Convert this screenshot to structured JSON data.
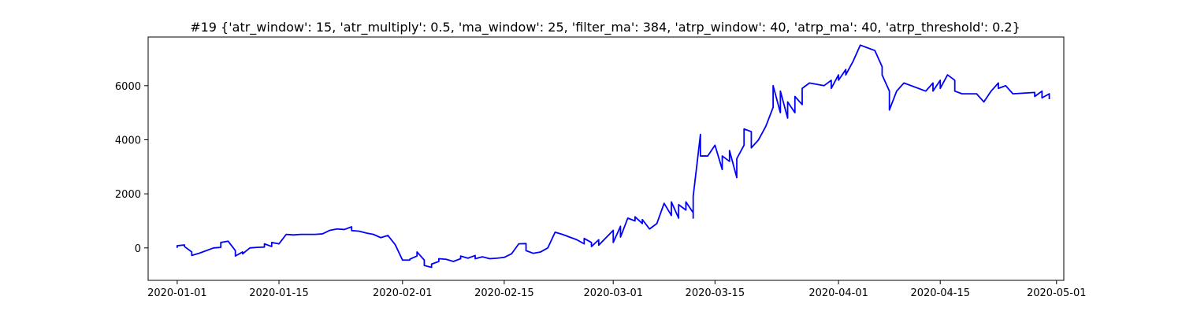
{
  "chart_data": {
    "type": "line",
    "title": "#19 {'atr_window': 15, 'atr_multiply': 0.5, 'ma_window': 25, 'filter_ma': 384, 'atrp_window': 40, 'atrp_ma': 40, 'atrp_threshold': 0.2}",
    "xlabel": "",
    "ylabel": "",
    "x_ticks": [
      {
        "date": "2020-01-01",
        "label": "2020-01-01"
      },
      {
        "date": "2020-01-15",
        "label": "2020-01-15"
      },
      {
        "date": "2020-02-01",
        "label": "2020-02-01"
      },
      {
        "date": "2020-02-15",
        "label": "2020-02-15"
      },
      {
        "date": "2020-03-01",
        "label": "2020-03-01"
      },
      {
        "date": "2020-03-15",
        "label": "2020-03-15"
      },
      {
        "date": "2020-04-01",
        "label": "2020-04-01"
      },
      {
        "date": "2020-04-15",
        "label": "2020-04-15"
      },
      {
        "date": "2020-05-01",
        "label": "2020-05-01"
      }
    ],
    "y_ticks": [
      0,
      2000,
      4000,
      6000
    ],
    "xlim": [
      "2019-12-28",
      "2020-05-02"
    ],
    "ylim": [
      -1200,
      7800
    ],
    "grid": false,
    "series": [
      {
        "color": "#0000ff",
        "points": [
          [
            "2020-01-01",
            0
          ],
          [
            "2020-01-01",
            80
          ],
          [
            "2020-01-02",
            110
          ],
          [
            "2020-01-02",
            50
          ],
          [
            "2020-01-03",
            -150
          ],
          [
            "2020-01-03",
            -280
          ],
          [
            "2020-01-04",
            -200
          ],
          [
            "2020-01-06",
            0
          ],
          [
            "2020-01-07",
            20
          ],
          [
            "2020-01-07",
            200
          ],
          [
            "2020-01-08",
            250
          ],
          [
            "2020-01-09",
            -100
          ],
          [
            "2020-01-09",
            -300
          ],
          [
            "2020-01-10",
            -150
          ],
          [
            "2020-01-10",
            -220
          ],
          [
            "2020-01-11",
            0
          ],
          [
            "2020-01-12",
            20
          ],
          [
            "2020-01-13",
            30
          ],
          [
            "2020-01-13",
            150
          ],
          [
            "2020-01-14",
            50
          ],
          [
            "2020-01-14",
            200
          ],
          [
            "2020-01-15",
            150
          ],
          [
            "2020-01-16",
            500
          ],
          [
            "2020-01-17",
            480
          ],
          [
            "2020-01-18",
            500
          ],
          [
            "2020-01-20",
            500
          ],
          [
            "2020-01-21",
            520
          ],
          [
            "2020-01-22",
            650
          ],
          [
            "2020-01-23",
            700
          ],
          [
            "2020-01-24",
            680
          ],
          [
            "2020-01-25",
            780
          ],
          [
            "2020-01-25",
            640
          ],
          [
            "2020-01-26",
            620
          ],
          [
            "2020-01-27",
            550
          ],
          [
            "2020-01-28",
            500
          ],
          [
            "2020-01-29",
            380
          ],
          [
            "2020-01-30",
            460
          ],
          [
            "2020-01-31",
            120
          ],
          [
            "2020-02-01",
            -450
          ],
          [
            "2020-02-02",
            -450
          ],
          [
            "2020-02-02",
            -420
          ],
          [
            "2020-02-03",
            -300
          ],
          [
            "2020-02-03",
            -150
          ],
          [
            "2020-02-04",
            -450
          ],
          [
            "2020-02-04",
            -650
          ],
          [
            "2020-02-05",
            -720
          ],
          [
            "2020-02-05",
            -600
          ],
          [
            "2020-02-06",
            -500
          ],
          [
            "2020-02-06",
            -400
          ],
          [
            "2020-02-07",
            -420
          ],
          [
            "2020-02-08",
            -500
          ],
          [
            "2020-02-09",
            -400
          ],
          [
            "2020-02-09",
            -300
          ],
          [
            "2020-02-10",
            -380
          ],
          [
            "2020-02-11",
            -280
          ],
          [
            "2020-02-11",
            -400
          ],
          [
            "2020-02-12",
            -330
          ],
          [
            "2020-02-13",
            -400
          ],
          [
            "2020-02-14",
            -380
          ],
          [
            "2020-02-15",
            -350
          ],
          [
            "2020-02-16",
            -220
          ],
          [
            "2020-02-17",
            150
          ],
          [
            "2020-02-18",
            160
          ],
          [
            "2020-02-18",
            -100
          ],
          [
            "2020-02-19",
            -200
          ],
          [
            "2020-02-20",
            -150
          ],
          [
            "2020-02-21",
            0
          ],
          [
            "2020-02-22",
            580
          ],
          [
            "2020-02-23",
            500
          ],
          [
            "2020-02-25",
            300
          ],
          [
            "2020-02-26",
            150
          ],
          [
            "2020-02-26",
            350
          ],
          [
            "2020-02-27",
            200
          ],
          [
            "2020-02-27",
            50
          ],
          [
            "2020-02-28",
            300
          ],
          [
            "2020-02-28",
            100
          ],
          [
            "2020-03-01",
            650
          ],
          [
            "2020-03-01",
            200
          ],
          [
            "2020-03-02",
            800
          ],
          [
            "2020-03-02",
            400
          ],
          [
            "2020-03-03",
            1100
          ],
          [
            "2020-03-04",
            1000
          ],
          [
            "2020-03-04",
            1150
          ],
          [
            "2020-03-05",
            900
          ],
          [
            "2020-03-05",
            1050
          ],
          [
            "2020-03-06",
            700
          ],
          [
            "2020-03-07",
            900
          ],
          [
            "2020-03-08",
            1650
          ],
          [
            "2020-03-09",
            1200
          ],
          [
            "2020-03-09",
            1700
          ],
          [
            "2020-03-10",
            1100
          ],
          [
            "2020-03-10",
            1600
          ],
          [
            "2020-03-11",
            1400
          ],
          [
            "2020-03-11",
            1700
          ],
          [
            "2020-03-12",
            1300
          ],
          [
            "2020-03-12",
            1100
          ],
          [
            "2020-03-12",
            1900
          ],
          [
            "2020-03-13",
            4200
          ],
          [
            "2020-03-13",
            3900
          ],
          [
            "2020-03-13",
            3400
          ],
          [
            "2020-03-14",
            3400
          ],
          [
            "2020-03-15",
            3800
          ],
          [
            "2020-03-16",
            2900
          ],
          [
            "2020-03-16",
            3400
          ],
          [
            "2020-03-17",
            3200
          ],
          [
            "2020-03-17",
            3600
          ],
          [
            "2020-03-18",
            2600
          ],
          [
            "2020-03-18",
            3300
          ],
          [
            "2020-03-19",
            3800
          ],
          [
            "2020-03-19",
            4400
          ],
          [
            "2020-03-20",
            4300
          ],
          [
            "2020-03-20",
            3700
          ],
          [
            "2020-03-21",
            4000
          ],
          [
            "2020-03-22",
            4500
          ],
          [
            "2020-03-23",
            5200
          ],
          [
            "2020-03-23",
            6000
          ],
          [
            "2020-03-24",
            5000
          ],
          [
            "2020-03-24",
            5800
          ],
          [
            "2020-03-25",
            4800
          ],
          [
            "2020-03-25",
            5400
          ],
          [
            "2020-03-26",
            5000
          ],
          [
            "2020-03-26",
            5600
          ],
          [
            "2020-03-27",
            5300
          ],
          [
            "2020-03-27",
            5900
          ],
          [
            "2020-03-28",
            6100
          ],
          [
            "2020-03-30",
            6000
          ],
          [
            "2020-03-31",
            6200
          ],
          [
            "2020-03-31",
            5900
          ],
          [
            "2020-04-01",
            6400
          ],
          [
            "2020-04-01",
            6200
          ],
          [
            "2020-04-02",
            6600
          ],
          [
            "2020-04-02",
            6400
          ],
          [
            "2020-04-03",
            6900
          ],
          [
            "2020-04-04",
            7500
          ],
          [
            "2020-04-05",
            7400
          ],
          [
            "2020-04-06",
            7300
          ],
          [
            "2020-04-07",
            6700
          ],
          [
            "2020-04-07",
            6400
          ],
          [
            "2020-04-08",
            5800
          ],
          [
            "2020-04-08",
            5100
          ],
          [
            "2020-04-09",
            5800
          ],
          [
            "2020-04-10",
            6100
          ],
          [
            "2020-04-13",
            5800
          ],
          [
            "2020-04-14",
            6100
          ],
          [
            "2020-04-14",
            5800
          ],
          [
            "2020-04-15",
            6200
          ],
          [
            "2020-04-15",
            5900
          ],
          [
            "2020-04-16",
            6400
          ],
          [
            "2020-04-17",
            6200
          ],
          [
            "2020-04-17",
            5800
          ],
          [
            "2020-04-18",
            5700
          ],
          [
            "2020-04-20",
            5700
          ],
          [
            "2020-04-21",
            5400
          ],
          [
            "2020-04-22",
            5800
          ],
          [
            "2020-04-23",
            6100
          ],
          [
            "2020-04-23",
            5900
          ],
          [
            "2020-04-24",
            6000
          ],
          [
            "2020-04-25",
            5700
          ],
          [
            "2020-04-28",
            5750
          ],
          [
            "2020-04-28",
            5600
          ],
          [
            "2020-04-29",
            5800
          ],
          [
            "2020-04-29",
            5550
          ],
          [
            "2020-04-30",
            5700
          ],
          [
            "2020-04-30",
            5500
          ]
        ]
      }
    ]
  }
}
